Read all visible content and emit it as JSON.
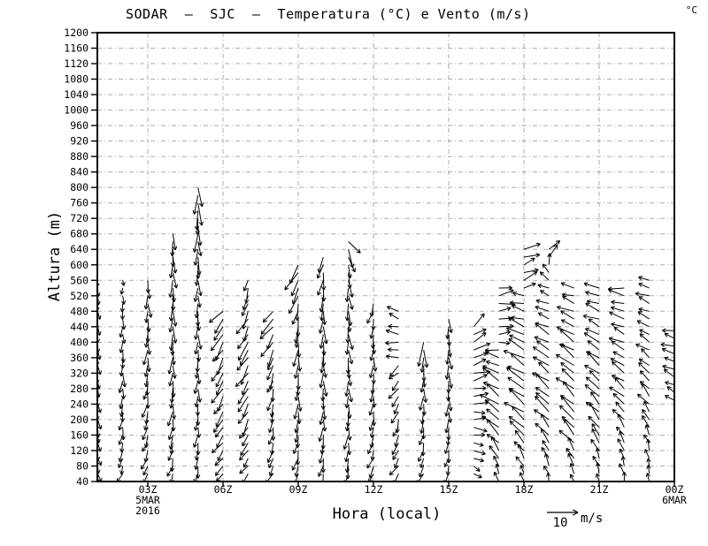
{
  "chart_data": {
    "type": "vector",
    "title": "SODAR  –  SJC  –  Temperatura (°C) e Vento (m/s)",
    "colorbar_unit": "°C",
    "x_axis": {
      "title": "Hora (local)",
      "ticks": [
        {
          "label": "03Z",
          "hour": 3,
          "sub": [
            "5MAR",
            "2016"
          ]
        },
        {
          "label": "06Z",
          "hour": 6,
          "sub": []
        },
        {
          "label": "09Z",
          "hour": 9,
          "sub": []
        },
        {
          "label": "12Z",
          "hour": 12,
          "sub": []
        },
        {
          "label": "15Z",
          "hour": 15,
          "sub": []
        },
        {
          "label": "18Z",
          "hour": 18,
          "sub": []
        },
        {
          "label": "21Z",
          "hour": 21,
          "sub": []
        },
        {
          "label": "00Z",
          "hour": 24,
          "sub": [
            "6MAR"
          ]
        }
      ]
    },
    "y_axis": {
      "title": "Altura (m)",
      "min": 40,
      "max": 1200,
      "step": 40
    },
    "reference_arrow": {
      "label": "10",
      "unit": "m/s",
      "speed_ms": 10
    },
    "grid": {
      "horizontal_step_m": 40,
      "vertical_step_h": 3,
      "style": "dash-dot",
      "color": "#ababab"
    },
    "level_step_m": 20,
    "profile_format": "[altitude_m, direction_deg (0=right/E, 90=up/N), speed_m_s]",
    "wind_columns": [
      {
        "t": 1,
        "hour": "01Z",
        "profile": [
          [
            40,
            -70,
            2.5
          ],
          [
            160,
            -80,
            3
          ],
          [
            320,
            -85,
            3
          ],
          [
            440,
            -85,
            3
          ],
          [
            560,
            -88,
            2.5
          ]
        ]
      },
      {
        "t": 2,
        "hour": "02Z",
        "profile": [
          [
            40,
            -115,
            3
          ],
          [
            160,
            -100,
            3.5
          ],
          [
            320,
            -92,
            4
          ],
          [
            480,
            -90,
            3
          ],
          [
            560,
            -90,
            2
          ]
        ]
      },
      {
        "t": 3,
        "hour": "03Z",
        "profile": [
          [
            40,
            -120,
            3.5
          ],
          [
            200,
            -105,
            4
          ],
          [
            400,
            -92,
            4.5
          ],
          [
            560,
            -86,
            4
          ]
        ]
      },
      {
        "t": 4,
        "hour": "04Z",
        "profile": [
          [
            40,
            -110,
            3.5
          ],
          [
            240,
            -95,
            4.5
          ],
          [
            480,
            -90,
            5
          ],
          [
            640,
            -88,
            5
          ],
          [
            680,
            -90,
            5.5
          ]
        ]
      },
      {
        "t": 5,
        "hour": "05Z",
        "profile": [
          [
            40,
            -100,
            3.5
          ],
          [
            280,
            -92,
            4
          ],
          [
            560,
            -90,
            4.5
          ],
          [
            720,
            -90,
            6
          ],
          [
            800,
            -89,
            7
          ]
        ]
      },
      {
        "t": 6,
        "hour": "06Z",
        "profile": [
          [
            40,
            -135,
            3
          ],
          [
            160,
            -125,
            4.5
          ],
          [
            320,
            -118,
            5.5
          ],
          [
            440,
            -122,
            6
          ],
          [
            480,
            -130,
            5
          ]
        ]
      },
      {
        "t": 7,
        "hour": "07Z",
        "profile": [
          [
            40,
            -130,
            3
          ],
          [
            200,
            -118,
            5
          ],
          [
            360,
            -122,
            6
          ],
          [
            480,
            -115,
            5.5
          ],
          [
            560,
            -100,
            4
          ]
        ]
      },
      {
        "t": 8,
        "hour": "08Z",
        "profile": [
          [
            40,
            -120,
            3.5
          ],
          [
            200,
            -98,
            4
          ],
          [
            360,
            -110,
            5
          ],
          [
            440,
            -128,
            6
          ],
          [
            480,
            -135,
            5
          ]
        ]
      },
      {
        "t": 9,
        "hour": "09Z",
        "profile": [
          [
            40,
            -112,
            4
          ],
          [
            240,
            -92,
            4.5
          ],
          [
            440,
            -96,
            5
          ],
          [
            560,
            -115,
            6
          ],
          [
            600,
            -125,
            6.5
          ]
        ]
      },
      {
        "t": 10,
        "hour": "10Z",
        "profile": [
          [
            40,
            -105,
            4
          ],
          [
            280,
            -88,
            4.5
          ],
          [
            480,
            -92,
            5
          ],
          [
            580,
            -100,
            5
          ],
          [
            620,
            -110,
            5.5
          ]
        ]
      },
      {
        "t": 11,
        "hour": "11Z",
        "profile": [
          [
            40,
            -100,
            4
          ],
          [
            320,
            -86,
            4.5
          ],
          [
            560,
            -85,
            5
          ],
          [
            620,
            -75,
            5
          ],
          [
            660,
            -55,
            6
          ]
        ]
      },
      {
        "t": 12,
        "hour": "12Z",
        "profile": [
          [
            40,
            -118,
            3.5
          ],
          [
            240,
            -96,
            4
          ],
          [
            420,
            -92,
            4
          ],
          [
            500,
            -110,
            4
          ]
        ]
      },
      {
        "t": 13,
        "hour": "13Z",
        "profile": [
          [
            40,
            -128,
            3.5
          ],
          [
            200,
            -108,
            4
          ],
          [
            320,
            -138,
            4
          ],
          [
            400,
            178,
            4
          ],
          [
            480,
            152,
            3.5
          ]
        ]
      },
      {
        "t": 14,
        "hour": "14Z",
        "profile": [
          [
            40,
            -118,
            3.5
          ],
          [
            200,
            -96,
            4
          ],
          [
            340,
            -90,
            4.5
          ],
          [
            400,
            -90,
            7
          ]
        ]
      },
      {
        "t": 15,
        "hour": "15Z",
        "profile": [
          [
            40,
            -110,
            3
          ],
          [
            200,
            -92,
            4
          ],
          [
            360,
            -86,
            4.5
          ],
          [
            460,
            -90,
            4
          ]
        ]
      },
      {
        "t": 16,
        "hour": "16Z",
        "profile": [
          [
            40,
            -45,
            2.5
          ],
          [
            120,
            -15,
            3.5
          ],
          [
            260,
            8,
            4.5
          ],
          [
            380,
            25,
            5
          ],
          [
            450,
            42,
            5
          ]
        ]
      },
      {
        "t": 17,
        "hour": "17Z",
        "profile": [
          [
            40,
            105,
            3
          ],
          [
            160,
            138,
            6
          ],
          [
            300,
            148,
            6
          ],
          [
            380,
            170,
            4
          ],
          [
            420,
            5,
            4
          ],
          [
            540,
            10,
            5
          ]
        ]
      },
      {
        "t": 18,
        "hour": "18Z",
        "profile": [
          [
            40,
            112,
            3
          ],
          [
            200,
            142,
            6.5
          ],
          [
            400,
            152,
            6
          ],
          [
            500,
            168,
            4
          ],
          [
            560,
            25,
            4.5
          ],
          [
            640,
            15,
            5
          ]
        ]
      },
      {
        "t": 19,
        "hour": "19Z",
        "profile": [
          [
            40,
            108,
            3
          ],
          [
            200,
            136,
            6
          ],
          [
            380,
            148,
            5.5
          ],
          [
            500,
            162,
            4
          ],
          [
            560,
            148,
            3.5
          ],
          [
            640,
            30,
            4.5
          ]
        ]
      },
      {
        "t": 20,
        "hour": "20Z",
        "profile": [
          [
            40,
            108,
            3
          ],
          [
            160,
            132,
            6
          ],
          [
            360,
            144,
            6
          ],
          [
            480,
            156,
            5
          ],
          [
            540,
            166,
            4
          ]
        ]
      },
      {
        "t": 21,
        "hour": "21Z",
        "profile": [
          [
            40,
            104,
            3
          ],
          [
            200,
            130,
            5.5
          ],
          [
            400,
            148,
            5
          ],
          [
            540,
            168,
            4.5
          ]
        ]
      },
      {
        "t": 22,
        "hour": "22Z",
        "profile": [
          [
            40,
            100,
            3
          ],
          [
            240,
            138,
            5
          ],
          [
            440,
            158,
            4.5
          ],
          [
            540,
            172,
            5
          ]
        ]
      },
      {
        "t": 23,
        "hour": "23Z",
        "profile": [
          [
            40,
            96,
            2.5
          ],
          [
            240,
            128,
            4.5
          ],
          [
            440,
            152,
            4
          ],
          [
            560,
            164,
            4
          ]
        ]
      },
      {
        "t": 24,
        "hour": "00Z",
        "profile": [
          [
            250,
            148,
            3
          ],
          [
            340,
            158,
            4
          ],
          [
            430,
            168,
            4
          ]
        ]
      }
    ]
  },
  "colors": {
    "background": "#ffffff",
    "frame": "#000000",
    "arrows": "#000000",
    "grid": "#ababab"
  }
}
